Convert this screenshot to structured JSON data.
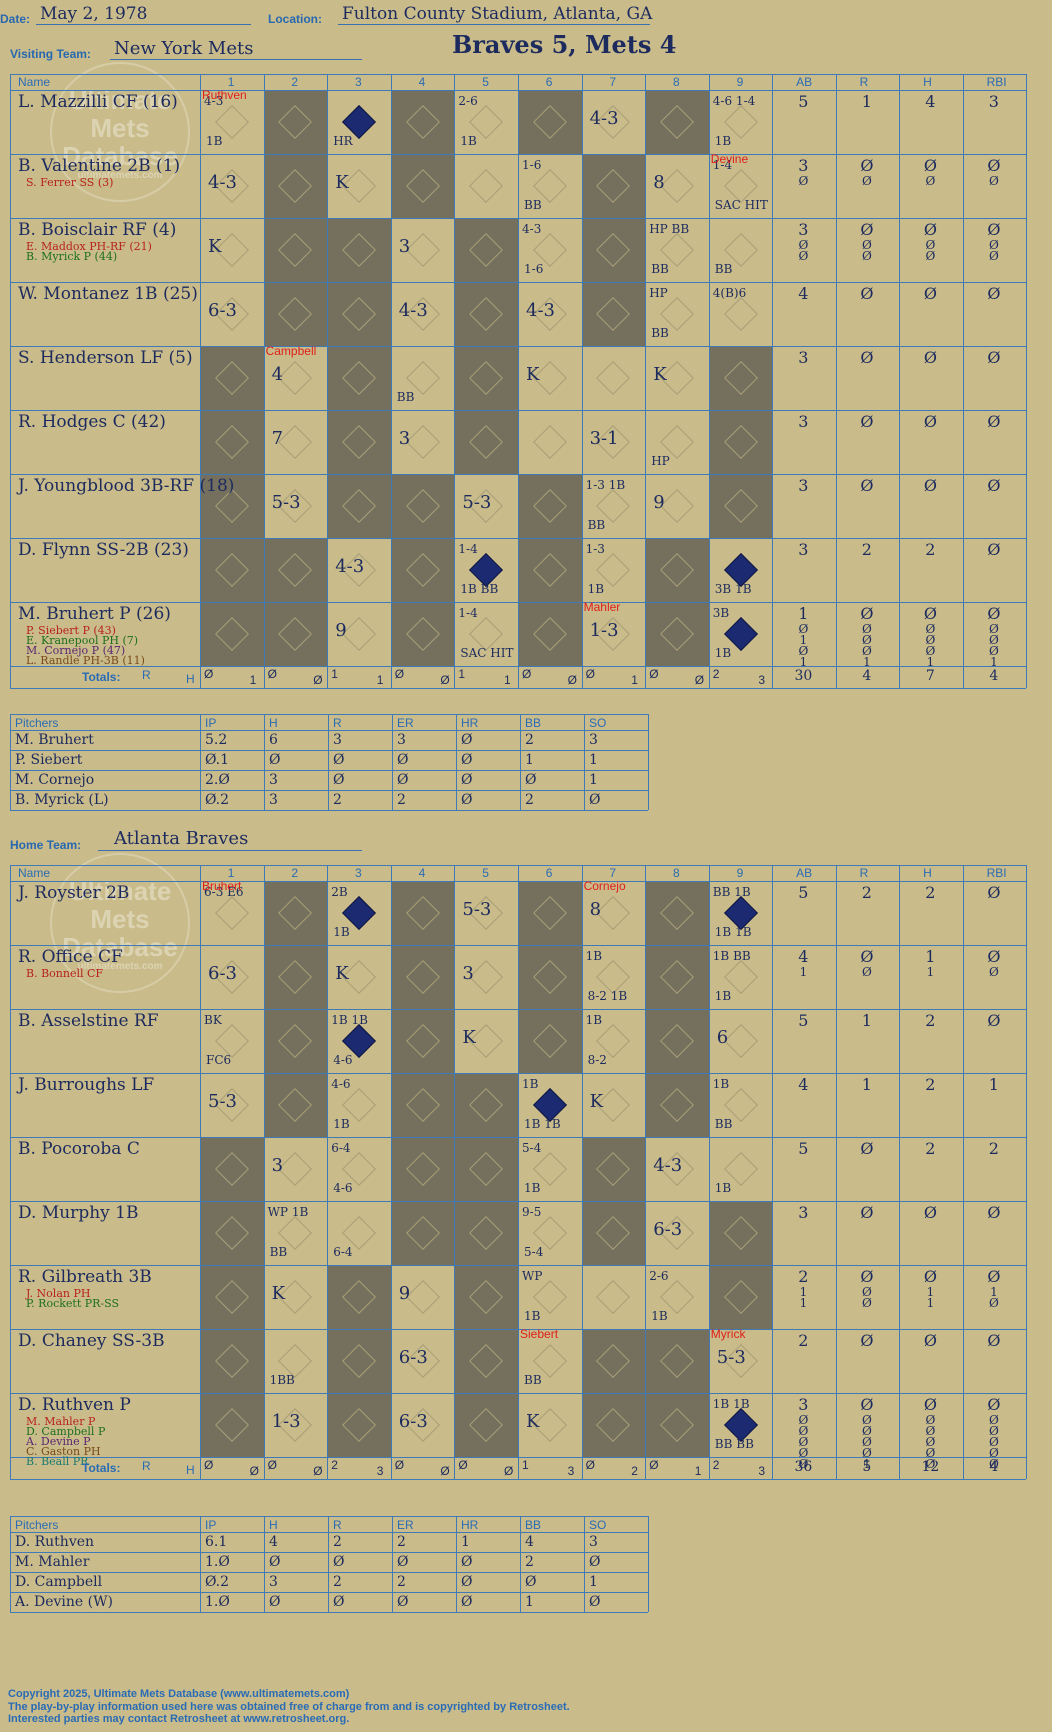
{
  "header": {
    "date_label": "Date:",
    "date": "May 2, 1978",
    "location_label": "Location:",
    "location": "Fulton County Stadium, Atlanta, GA",
    "visiting_label": "Visiting Team:",
    "visiting_team": "New York Mets",
    "title": "Braves 5, Mets 4",
    "home_label": "Home Team:",
    "home_team": "Atlanta Braves"
  },
  "watermark": {
    "line1": "Ultimate",
    "line2": "Mets",
    "line3": "Database",
    "url": "ultimatemets.com"
  },
  "columns": {
    "name": "Name",
    "innings": [
      "1",
      "2",
      "3",
      "4",
      "5",
      "6",
      "7",
      "8",
      "9"
    ],
    "stats": [
      "AB",
      "R",
      "H",
      "RBI"
    ],
    "totals_label": "Totals:",
    "r": "R",
    "h": "H"
  },
  "visitors": {
    "rows": [
      {
        "name": "L. Mazzilli CF (16)",
        "subs": [],
        "stats": [
          [
            "5",
            "1",
            "4",
            "3"
          ]
        ]
      },
      {
        "name": "B. Valentine 2B (1)",
        "subs": [
          {
            "text": "S. Ferrer SS (3)",
            "color": "red"
          }
        ],
        "stats": [
          [
            "3",
            "Ø",
            "Ø",
            "Ø"
          ],
          [
            "Ø",
            "Ø",
            "Ø",
            "Ø"
          ]
        ]
      },
      {
        "name": "B. Boisclair RF (4)",
        "subs": [
          {
            "text": "E. Maddox PH-RF (21)",
            "color": "red"
          },
          {
            "text": "B. Myrick P (44)",
            "color": "grn"
          }
        ],
        "stats": [
          [
            "3",
            "Ø",
            "Ø",
            "Ø"
          ],
          [
            "Ø",
            "Ø",
            "Ø",
            "Ø"
          ],
          [
            "Ø",
            "Ø",
            "Ø",
            "Ø"
          ]
        ]
      },
      {
        "name": "W. Montanez 1B (25)",
        "subs": [],
        "stats": [
          [
            "4",
            "Ø",
            "Ø",
            "Ø"
          ]
        ]
      },
      {
        "name": "S. Henderson LF (5)",
        "subs": [],
        "stats": [
          [
            "3",
            "Ø",
            "Ø",
            "Ø"
          ]
        ]
      },
      {
        "name": "R. Hodges C (42)",
        "subs": [],
        "stats": [
          [
            "3",
            "Ø",
            "Ø",
            "Ø"
          ]
        ]
      },
      {
        "name": "J. Youngblood 3B-RF (18)",
        "subs": [],
        "stats": [
          [
            "3",
            "Ø",
            "Ø",
            "Ø"
          ]
        ]
      },
      {
        "name": "D. Flynn SS-2B (23)",
        "subs": [],
        "stats": [
          [
            "3",
            "2",
            "2",
            "Ø"
          ]
        ]
      },
      {
        "name": "M. Bruhert P (26)",
        "subs": [
          {
            "text": "P. Siebert P (43)",
            "color": "red"
          },
          {
            "text": "E. Kranepool PH (7)",
            "color": "grn"
          },
          {
            "text": "M. Cornejo P (47)",
            "color": "pur"
          },
          {
            "text": "L. Randle PH-3B (11)",
            "color": "brn"
          }
        ],
        "stats": [
          [
            "1",
            "Ø",
            "Ø",
            "Ø"
          ],
          [
            "Ø",
            "Ø",
            "Ø",
            "Ø"
          ],
          [
            "1",
            "Ø",
            "Ø",
            "Ø"
          ],
          [
            "Ø",
            "Ø",
            "Ø",
            "Ø"
          ],
          [
            "1",
            "1",
            "1",
            "1"
          ]
        ]
      }
    ],
    "totals": [
      [
        "Ø",
        "1"
      ],
      [
        "Ø",
        "Ø"
      ],
      [
        "1",
        "1"
      ],
      [
        "Ø",
        "Ø"
      ],
      [
        "1",
        "1"
      ],
      [
        "Ø",
        "Ø"
      ],
      [
        "Ø",
        "1"
      ],
      [
        "Ø",
        "Ø"
      ],
      [
        "2",
        "3"
      ]
    ],
    "totals_stats": [
      "30",
      "4",
      "7",
      "4"
    ],
    "plays": [
      {
        "r": 0,
        "c": 0,
        "t": "4-3",
        "small": "1B",
        "runner": "Ruthven"
      },
      {
        "r": 0,
        "c": 2,
        "t": "",
        "small": "HR",
        "filled": true
      },
      {
        "r": 0,
        "c": 4,
        "t": "2-6",
        "small": "1B"
      },
      {
        "r": 0,
        "c": 6,
        "t": "4-3"
      },
      {
        "r": 0,
        "c": 8,
        "t": "4-6 1-4",
        "small": "1B"
      },
      {
        "r": 1,
        "c": 0,
        "t": "4-3"
      },
      {
        "r": 1,
        "c": 2,
        "t": "K"
      },
      {
        "r": 1,
        "c": 5,
        "t": "1-6",
        "small": "BB"
      },
      {
        "r": 1,
        "c": 7,
        "t": "8"
      },
      {
        "r": 1,
        "c": 8,
        "t": "1-4",
        "small": "SAC HIT",
        "runner": "Devine"
      },
      {
        "r": 2,
        "c": 0,
        "t": "K"
      },
      {
        "r": 2,
        "c": 3,
        "t": "3"
      },
      {
        "r": 2,
        "c": 5,
        "t": "4-3",
        "small": "1-6"
      },
      {
        "r": 2,
        "c": 7,
        "t": "HP BB",
        "small": "BB"
      },
      {
        "r": 2,
        "c": 8,
        "t": "",
        "small": "BB"
      },
      {
        "r": 3,
        "c": 0,
        "t": "6-3"
      },
      {
        "r": 3,
        "c": 3,
        "t": "4-3"
      },
      {
        "r": 3,
        "c": 5,
        "t": "4-3"
      },
      {
        "r": 3,
        "c": 7,
        "t": "HP",
        "small": "BB"
      },
      {
        "r": 3,
        "c": 8,
        "t": "4(B)6"
      },
      {
        "r": 4,
        "c": 1,
        "t": "4",
        "runner": "Campbell"
      },
      {
        "r": 4,
        "c": 3,
        "t": "",
        "small": "BB"
      },
      {
        "r": 4,
        "c": 5,
        "t": "K"
      },
      {
        "r": 4,
        "c": 7,
        "t": "K"
      },
      {
        "r": 5,
        "c": 1,
        "t": "7"
      },
      {
        "r": 5,
        "c": 3,
        "t": "3"
      },
      {
        "r": 5,
        "c": 6,
        "t": "3-1"
      },
      {
        "r": 5,
        "c": 7,
        "t": "",
        "small": "HP"
      },
      {
        "r": 6,
        "c": 1,
        "t": "5-3"
      },
      {
        "r": 6,
        "c": 4,
        "t": "5-3"
      },
      {
        "r": 6,
        "c": 6,
        "t": "1-3 1B",
        "small": "BB"
      },
      {
        "r": 6,
        "c": 7,
        "t": "9"
      },
      {
        "r": 7,
        "c": 2,
        "t": "4-3"
      },
      {
        "r": 7,
        "c": 4,
        "t": "1-4",
        "small": "1B BB",
        "filled": true
      },
      {
        "r": 7,
        "c": 6,
        "t": "1-3",
        "small": "1B"
      },
      {
        "r": 7,
        "c": 8,
        "t": "",
        "small": "3B 1B",
        "filled": true
      },
      {
        "r": 8,
        "c": 2,
        "t": "9"
      },
      {
        "r": 8,
        "c": 4,
        "t": "1-4",
        "small": "SAC HIT"
      },
      {
        "r": 8,
        "c": 6,
        "t": "1-3",
        "runner": "Mahler"
      },
      {
        "r": 8,
        "c": 8,
        "t": "3B",
        "small": "1B",
        "filled": true
      }
    ]
  },
  "home": {
    "rows": [
      {
        "name": "J. Royster 2B",
        "subs": [],
        "stats": [
          [
            "5",
            "2",
            "2",
            "Ø"
          ]
        ]
      },
      {
        "name": "R. Office CF",
        "subs": [
          {
            "text": "B. Bonnell CF",
            "color": "red"
          }
        ],
        "stats": [
          [
            "4",
            "Ø",
            "1",
            "Ø"
          ],
          [
            "1",
            "Ø",
            "1",
            "Ø"
          ]
        ]
      },
      {
        "name": "B. Asselstine RF",
        "subs": [],
        "stats": [
          [
            "5",
            "1",
            "2",
            "Ø"
          ]
        ]
      },
      {
        "name": "J. Burroughs LF",
        "subs": [],
        "stats": [
          [
            "4",
            "1",
            "2",
            "1"
          ]
        ]
      },
      {
        "name": "B. Pocoroba C",
        "subs": [],
        "stats": [
          [
            "5",
            "Ø",
            "2",
            "2"
          ]
        ]
      },
      {
        "name": "D. Murphy 1B",
        "subs": [],
        "stats": [
          [
            "3",
            "Ø",
            "Ø",
            "Ø"
          ]
        ]
      },
      {
        "name": "R. Gilbreath 3B",
        "subs": [
          {
            "text": "J. Nolan PH",
            "color": "red"
          },
          {
            "text": "P. Rockett PR-SS",
            "color": "grn"
          }
        ],
        "stats": [
          [
            "2",
            "Ø",
            "Ø",
            "Ø"
          ],
          [
            "1",
            "Ø",
            "1",
            "1"
          ],
          [
            "1",
            "Ø",
            "1",
            "Ø"
          ]
        ]
      },
      {
        "name": "D. Chaney SS-3B",
        "subs": [],
        "stats": [
          [
            "2",
            "Ø",
            "Ø",
            "Ø"
          ]
        ]
      },
      {
        "name": "D. Ruthven P",
        "subs": [
          {
            "text": "M. Mahler P",
            "color": "red"
          },
          {
            "text": "D. Campbell P",
            "color": "grn"
          },
          {
            "text": "A. Devine P",
            "color": "pur"
          },
          {
            "text": "C. Gaston PH",
            "color": "brn"
          },
          {
            "text": "B. Beall PR",
            "color": "teal"
          }
        ],
        "stats": [
          [
            "3",
            "Ø",
            "Ø",
            "Ø"
          ],
          [
            "Ø",
            "Ø",
            "Ø",
            "Ø"
          ],
          [
            "Ø",
            "Ø",
            "Ø",
            "Ø"
          ],
          [
            "Ø",
            "Ø",
            "Ø",
            "Ø"
          ],
          [
            "Ø",
            "Ø",
            "Ø",
            "Ø"
          ],
          [
            "Ø",
            "1",
            "Ø",
            "Ø"
          ]
        ]
      }
    ],
    "totals": [
      [
        "Ø",
        "Ø"
      ],
      [
        "Ø",
        "Ø"
      ],
      [
        "2",
        "3"
      ],
      [
        "Ø",
        "Ø"
      ],
      [
        "Ø",
        "Ø"
      ],
      [
        "1",
        "3"
      ],
      [
        "Ø",
        "2"
      ],
      [
        "Ø",
        "1"
      ],
      [
        "2",
        "3"
      ]
    ],
    "totals_stats": [
      "36",
      "5",
      "12",
      "4"
    ],
    "plays": [
      {
        "r": 0,
        "c": 0,
        "t": "6-3 E6",
        "runner": "Bruhert"
      },
      {
        "r": 0,
        "c": 2,
        "t": "2B",
        "small": "1B",
        "filled": true
      },
      {
        "r": 0,
        "c": 4,
        "t": "5-3"
      },
      {
        "r": 0,
        "c": 6,
        "t": "8",
        "runner": "Cornejo"
      },
      {
        "r": 0,
        "c": 8,
        "t": "BB 1B",
        "small": "1B 1B",
        "filled": true
      },
      {
        "r": 1,
        "c": 0,
        "t": "6-3"
      },
      {
        "r": 1,
        "c": 2,
        "t": "K"
      },
      {
        "r": 1,
        "c": 4,
        "t": "3"
      },
      {
        "r": 1,
        "c": 6,
        "t": "1B",
        "small": "8-2 1B"
      },
      {
        "r": 1,
        "c": 8,
        "t": "1B BB",
        "small": "1B"
      },
      {
        "r": 2,
        "c": 0,
        "t": "BK",
        "small": "FC6"
      },
      {
        "r": 2,
        "c": 2,
        "t": "1B 1B",
        "small": "4-6",
        "filled": true
      },
      {
        "r": 2,
        "c": 4,
        "t": "K"
      },
      {
        "r": 2,
        "c": 6,
        "t": "1B",
        "small": "8-2"
      },
      {
        "r": 2,
        "c": 8,
        "t": "6"
      },
      {
        "r": 3,
        "c": 0,
        "t": "5-3"
      },
      {
        "r": 3,
        "c": 2,
        "t": "4-6",
        "small": "1B"
      },
      {
        "r": 3,
        "c": 5,
        "t": "1B",
        "small": "1B 1B",
        "filled": true
      },
      {
        "r": 3,
        "c": 6,
        "t": "K"
      },
      {
        "r": 3,
        "c": 8,
        "t": "1B",
        "small": "BB"
      },
      {
        "r": 4,
        "c": 1,
        "t": "3"
      },
      {
        "r": 4,
        "c": 2,
        "t": "6-4",
        "small": "4-6"
      },
      {
        "r": 4,
        "c": 5,
        "t": "5-4",
        "small": "1B"
      },
      {
        "r": 4,
        "c": 7,
        "t": "4-3"
      },
      {
        "r": 4,
        "c": 8,
        "t": "",
        "small": "1B"
      },
      {
        "r": 5,
        "c": 1,
        "t": "WP 1B",
        "small": "BB"
      },
      {
        "r": 5,
        "c": 2,
        "t": "",
        "small": "6-4"
      },
      {
        "r": 5,
        "c": 5,
        "t": "9-5",
        "small": "5-4"
      },
      {
        "r": 5,
        "c": 7,
        "t": "6-3"
      },
      {
        "r": 6,
        "c": 1,
        "t": "K"
      },
      {
        "r": 6,
        "c": 3,
        "t": "9"
      },
      {
        "r": 6,
        "c": 5,
        "t": "WP",
        "small": "1B"
      },
      {
        "r": 6,
        "c": 7,
        "t": "2-6",
        "small": "1B"
      },
      {
        "r": 7,
        "c": 1,
        "t": "",
        "small": "1BB"
      },
      {
        "r": 7,
        "c": 3,
        "t": "6-3"
      },
      {
        "r": 7,
        "c": 5,
        "t": "",
        "small": "BB",
        "runner": "Siebert"
      },
      {
        "r": 7,
        "c": 8,
        "t": "5-3",
        "runner": "Myrick"
      },
      {
        "r": 8,
        "c": 1,
        "t": "1-3"
      },
      {
        "r": 8,
        "c": 3,
        "t": "6-3"
      },
      {
        "r": 8,
        "c": 5,
        "t": "K"
      },
      {
        "r": 8,
        "c": 8,
        "t": "1B 1B",
        "small": "BB BB",
        "filled": true
      }
    ]
  },
  "pitchers_header": [
    "Pitchers",
    "IP",
    "H",
    "R",
    "ER",
    "HR",
    "BB",
    "SO"
  ],
  "visitor_pitchers": [
    [
      "M. Bruhert",
      "5.2",
      "6",
      "3",
      "3",
      "Ø",
      "2",
      "3"
    ],
    [
      "P. Siebert",
      "Ø.1",
      "Ø",
      "Ø",
      "Ø",
      "Ø",
      "1",
      "1"
    ],
    [
      "M. Cornejo",
      "2.Ø",
      "3",
      "Ø",
      "Ø",
      "Ø",
      "Ø",
      "1"
    ],
    [
      "B. Myrick (L)",
      "Ø.2",
      "3",
      "2",
      "2",
      "Ø",
      "2",
      "Ø"
    ]
  ],
  "home_pitchers": [
    [
      "D. Ruthven",
      "6.1",
      "4",
      "2",
      "2",
      "1",
      "4",
      "3"
    ],
    [
      "M. Mahler",
      "1.Ø",
      "Ø",
      "Ø",
      "Ø",
      "Ø",
      "2",
      "Ø"
    ],
    [
      "D. Campbell",
      "Ø.2",
      "3",
      "2",
      "2",
      "Ø",
      "Ø",
      "1"
    ],
    [
      "A. Devine (W)",
      "1.Ø",
      "Ø",
      "Ø",
      "Ø",
      "Ø",
      "1",
      "Ø"
    ]
  ],
  "footer": {
    "line1": "Copyright 2025, Ultimate Mets Database (www.ultimatemets.com)",
    "line2": "The play-by-play information used here was obtained free of charge from and is copyrighted by Retrosheet.",
    "line3": "Interested parties may contact Retrosheet at www.retrosheet.org."
  },
  "colors": {
    "background": "#c9bc8a",
    "shade": "#756f5e",
    "grid": "#3e79b8",
    "ink": "#1c2a5e",
    "red": "#e0201a"
  }
}
